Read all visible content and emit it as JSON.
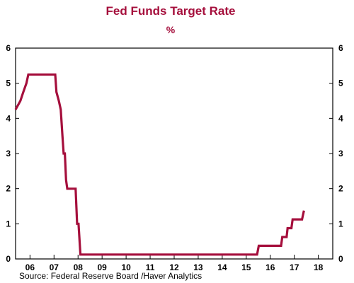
{
  "chart_data": {
    "type": "line",
    "title": "Fed Funds Target Rate",
    "subtitle": "%",
    "source": "Source:  Federal Reserve Board /Haver Analytics",
    "xlabel": "",
    "ylabel": "",
    "xlim": [
      2005.4,
      2018.6
    ],
    "ylim": [
      0,
      6
    ],
    "yticks": [
      0,
      1,
      2,
      3,
      4,
      5,
      6
    ],
    "xtick_labels": [
      {
        "x": 2006.0,
        "label": "06"
      },
      {
        "x": 2007.0,
        "label": "07"
      },
      {
        "x": 2008.0,
        "label": "08"
      },
      {
        "x": 2009.0,
        "label": "09"
      },
      {
        "x": 2010.0,
        "label": "10"
      },
      {
        "x": 2011.0,
        "label": "11"
      },
      {
        "x": 2012.0,
        "label": "12"
      },
      {
        "x": 2013.0,
        "label": "13"
      },
      {
        "x": 2014.0,
        "label": "14"
      },
      {
        "x": 2015.0,
        "label": "15"
      },
      {
        "x": 2016.0,
        "label": "16"
      },
      {
        "x": 2017.0,
        "label": "17"
      },
      {
        "x": 2018.0,
        "label": "18"
      }
    ],
    "grid": false,
    "line_color": "#A50F3C",
    "title_color": "#A50F3C",
    "series": [
      {
        "points": [
          [
            2005.4,
            4.25
          ],
          [
            2005.6,
            4.5
          ],
          [
            2005.72,
            4.75
          ],
          [
            2005.85,
            5.0
          ],
          [
            2005.93,
            5.25
          ],
          [
            2007.05,
            5.25
          ],
          [
            2007.1,
            4.75
          ],
          [
            2007.2,
            4.5
          ],
          [
            2007.28,
            4.25
          ],
          [
            2007.35,
            3.5
          ],
          [
            2007.4,
            3.0
          ],
          [
            2007.45,
            3.0
          ],
          [
            2007.5,
            2.25
          ],
          [
            2007.55,
            2.0
          ],
          [
            2007.9,
            2.0
          ],
          [
            2007.96,
            1.0
          ],
          [
            2008.02,
            1.0
          ],
          [
            2008.1,
            0.125
          ],
          [
            2015.45,
            0.125
          ],
          [
            2015.52,
            0.375
          ],
          [
            2016.45,
            0.375
          ],
          [
            2016.5,
            0.625
          ],
          [
            2016.68,
            0.625
          ],
          [
            2016.72,
            0.875
          ],
          [
            2016.88,
            0.875
          ],
          [
            2016.93,
            1.125
          ],
          [
            2017.32,
            1.125
          ],
          [
            2017.4,
            1.375
          ]
        ]
      }
    ]
  }
}
